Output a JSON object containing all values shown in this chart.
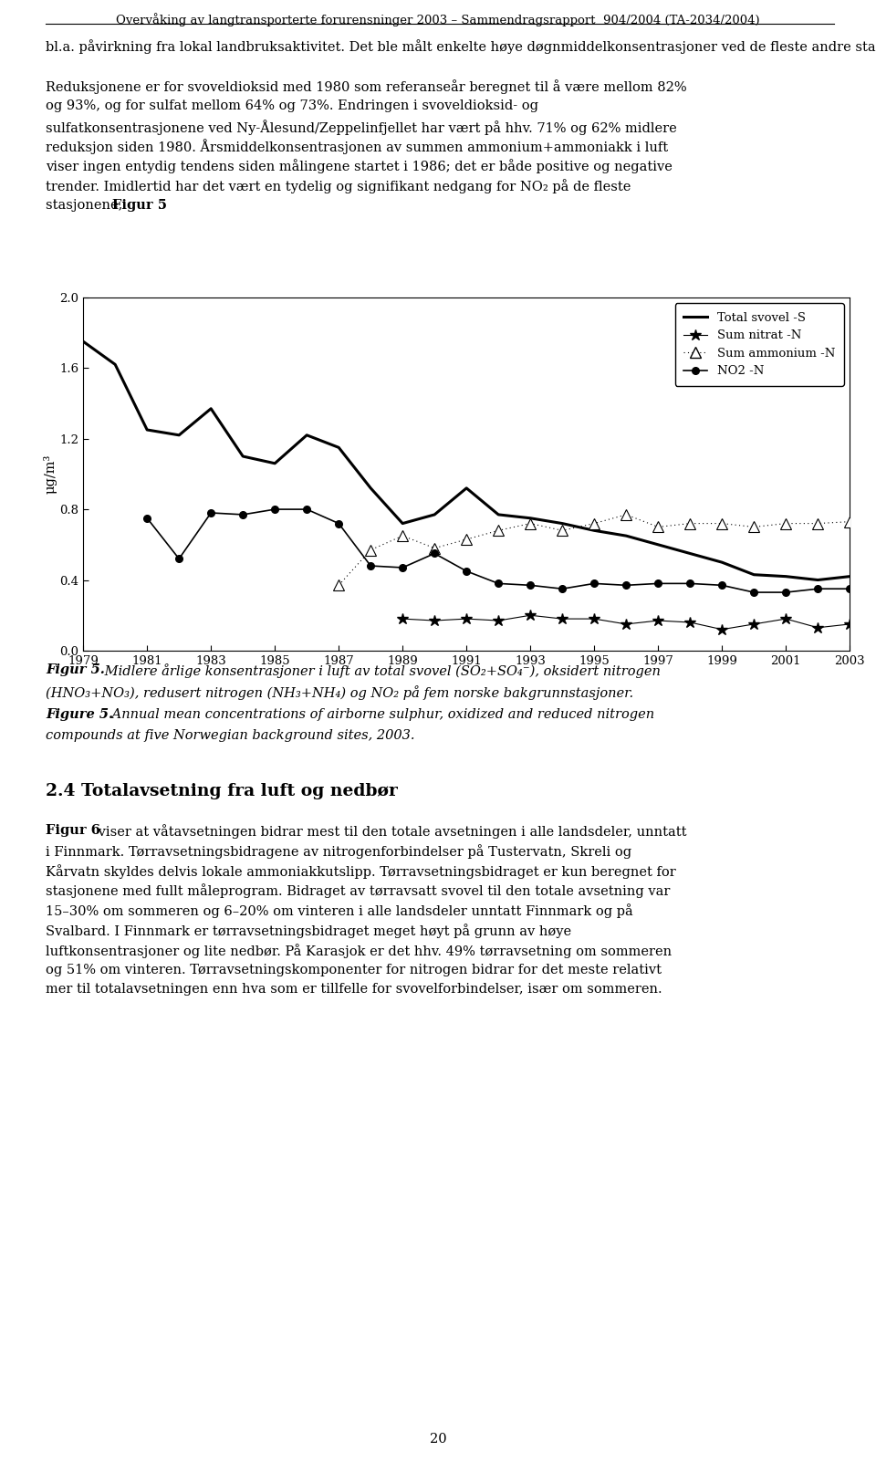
{
  "header": "Overvåking av langtransporterte forurensninger 2003 – Sammendragsrapport  904/2004 (TA-2034/2004)",
  "para1_line1": "bl.a. påvirkning fra lokal landbruksaktivitet. Det ble målt enkelte høye døgnmiddelkonsentrasjoner ved de fleste andre stasjoner også.",
  "para2_line1": "Reduksjonene er for svoveldioksid med 1980 som referanseår beregnet til å være mellom 82%",
  "para2_line2": "og 93%, og for sulfat mellom 64% og 73%. Endringen i svoveldioksid- og",
  "para2_line3": "sulfatkonsentrasjonene ved Ny-Ålesund/Zeppelinfjellet har vært på hhv. 71% og 62% midlere",
  "para2_line4": "reduksjon siden 1980. Årsmiddelkonsentrasjonen av summen ammonium+ammoniakk i luft",
  "para2_line5": "viser ingen entydig tendens siden målingene startet i 1986; det er både positive og negative",
  "para2_line6": "trender. Imidlertid har det vært en tydelig og signifikant nedgang for NO₂ på de fleste",
  "para2_line7_pre": "stasjonene, ",
  "para2_line7_bold": "Figur 5",
  "para2_line7_post": ".",
  "years": [
    1979,
    1980,
    1981,
    1982,
    1983,
    1984,
    1985,
    1986,
    1987,
    1988,
    1989,
    1990,
    1991,
    1992,
    1993,
    1994,
    1995,
    1996,
    1997,
    1998,
    1999,
    2000,
    2001,
    2002,
    2003
  ],
  "total_svovel": [
    1.75,
    1.62,
    1.25,
    1.22,
    1.37,
    1.1,
    1.06,
    1.22,
    1.15,
    0.92,
    0.72,
    0.77,
    0.92,
    0.77,
    0.75,
    0.72,
    0.68,
    0.65,
    0.6,
    0.55,
    0.5,
    0.43,
    0.42,
    0.4,
    0.42
  ],
  "sum_nitrat_years": [
    1989,
    1990,
    1991,
    1992,
    1993,
    1994,
    1995,
    1996,
    1997,
    1998,
    1999,
    2000,
    2001,
    2002,
    2003
  ],
  "sum_nitrat_vals": [
    0.18,
    0.17,
    0.18,
    0.17,
    0.2,
    0.18,
    0.18,
    0.15,
    0.17,
    0.16,
    0.12,
    0.15,
    0.18,
    0.13,
    0.15
  ],
  "sum_ammonium_years": [
    1987,
    1988,
    1989,
    1990,
    1991,
    1992,
    1993,
    1994,
    1995,
    1996,
    1997,
    1998,
    1999,
    2000,
    2001,
    2002,
    2003
  ],
  "sum_ammonium_vals": [
    0.37,
    0.57,
    0.65,
    0.58,
    0.63,
    0.68,
    0.72,
    0.68,
    0.72,
    0.77,
    0.7,
    0.72,
    0.72,
    0.7,
    0.72,
    0.72,
    0.73
  ],
  "no2_n_years": [
    1981,
    1982,
    1983,
    1984,
    1985,
    1986,
    1987,
    1988,
    1989,
    1990,
    1991,
    1992,
    1993,
    1994,
    1995,
    1996,
    1997,
    1998,
    1999,
    2000,
    2001,
    2002,
    2003
  ],
  "no2_n_vals": [
    0.75,
    0.52,
    0.78,
    0.77,
    0.8,
    0.8,
    0.72,
    0.48,
    0.47,
    0.55,
    0.45,
    0.38,
    0.37,
    0.35,
    0.38,
    0.37,
    0.38,
    0.38,
    0.37,
    0.33,
    0.33,
    0.35,
    0.35
  ],
  "ylim": [
    0.0,
    2.0
  ],
  "yticks": [
    0.0,
    0.4,
    0.8,
    1.2,
    1.6,
    2.0
  ],
  "xlabel_years": [
    1979,
    1981,
    1983,
    1985,
    1987,
    1989,
    1991,
    1993,
    1995,
    1997,
    1999,
    2001,
    2003
  ],
  "ylabel": "μg/m³",
  "fig5_bold_no": "Figur 5.",
  "fig5_italic_no": " Midlere årlige konsentrasjoner i luft av total svovel (SO",
  "fig5_italic_no2": "+SO",
  "fig5_italic_no3": "), oksidert nitrogen",
  "fig5_line2": "(HNO₃+NO₃), redusert nitrogen (NH₃+NH₄) og NO₂ på fem norske bakgrunnstasjoner.",
  "fig5en_bold": "Figure 5.",
  "fig5en_text": " Annual mean concentrations of airborne sulphur, oxidized and reduced nitrogen",
  "fig5en_line2": "compounds at five Norwegian background sites, 2003.",
  "section_heading": "2.4 Totalavsetning fra luft og nedbør",
  "para3_bold": "Figur 6",
  "para3_text_lines": [
    " viser at våtavsetningen bidrar mest til den totale avsetningen i alle landsdeler, unntatt",
    "i Finnmark. Tørravsetningsbidragene av nitrogenforbindelser på Tustervatn, Skreli og",
    "Kårvatn skyldes delvis lokale ammoniakkutslipp. Tørravsetningsbidraget er kun beregnet for",
    "stasjonene med fullt måleprogram. Bidraget av tørravsatt svovel til den totale avsetning var",
    "15–30% om sommeren og 6–20% om vinteren i alle landsdeler unntatt Finnmark og på",
    "Svalbard. I Finnmark er tørravsetningsbidraget meget høyt på grunn av høye",
    "luftkonsentrasjoner og lite nedbør. På Karasjok er det hhv. 49% tørravsetning om sommeren",
    "og 51% om vinteren. Tørravsetningskomponenter for nitrogen bidrar for det meste relativt",
    "mer til totalavsetningen enn hva som er tillfelle for svovelforbindelser, især om sommeren."
  ],
  "page_number": "20",
  "bg_color": "#ffffff",
  "text_color": "#000000",
  "line_color": "#000000"
}
